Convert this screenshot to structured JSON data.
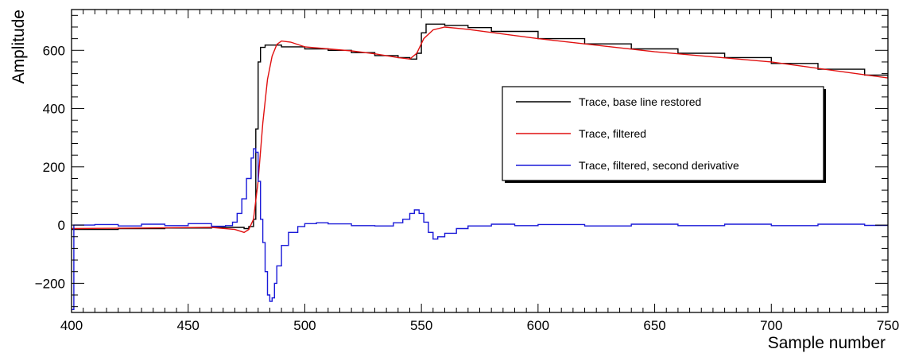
{
  "chart_data": {
    "type": "line",
    "title": "",
    "xlabel": "Sample number",
    "ylabel": "Amplitude",
    "xlim": [
      400,
      750
    ],
    "ylim": [
      -300,
      740
    ],
    "x_ticks": [
      400,
      450,
      500,
      550,
      600,
      650,
      700,
      750
    ],
    "y_ticks": [
      -200,
      0,
      200,
      400,
      600
    ],
    "y_tick_labels": [
      "−200",
      "0",
      "200",
      "400",
      "600"
    ],
    "grid": false,
    "legend_position": "center-right",
    "series": [
      {
        "name": "Trace, base line restored",
        "color": "#000000",
        "style": "step",
        "points": [
          [
            400,
            -15
          ],
          [
            420,
            -12
          ],
          [
            440,
            -10
          ],
          [
            460,
            -8
          ],
          [
            470,
            -8
          ],
          [
            474,
            -12
          ],
          [
            476,
            -5
          ],
          [
            478,
            20
          ],
          [
            479,
            330
          ],
          [
            480,
            560
          ],
          [
            481,
            610
          ],
          [
            483,
            618
          ],
          [
            490,
            612
          ],
          [
            500,
            605
          ],
          [
            510,
            600
          ],
          [
            520,
            592
          ],
          [
            530,
            582
          ],
          [
            540,
            575
          ],
          [
            545,
            570
          ],
          [
            548,
            590
          ],
          [
            550,
            660
          ],
          [
            552,
            690
          ],
          [
            560,
            685
          ],
          [
            570,
            678
          ],
          [
            580,
            665
          ],
          [
            600,
            640
          ],
          [
            620,
            622
          ],
          [
            640,
            605
          ],
          [
            660,
            590
          ],
          [
            680,
            575
          ],
          [
            700,
            555
          ],
          [
            720,
            535
          ],
          [
            740,
            515
          ],
          [
            750,
            505
          ]
        ]
      },
      {
        "name": "Trace, filtered",
        "color": "#e01010",
        "style": "line",
        "points": [
          [
            400,
            -12
          ],
          [
            430,
            -10
          ],
          [
            460,
            -8
          ],
          [
            470,
            -15
          ],
          [
            474,
            -25
          ],
          [
            476,
            -15
          ],
          [
            478,
            20
          ],
          [
            480,
            150
          ],
          [
            482,
            350
          ],
          [
            484,
            500
          ],
          [
            486,
            580
          ],
          [
            488,
            620
          ],
          [
            490,
            632
          ],
          [
            494,
            628
          ],
          [
            500,
            612
          ],
          [
            520,
            598
          ],
          [
            530,
            588
          ],
          [
            540,
            575
          ],
          [
            545,
            570
          ],
          [
            548,
            590
          ],
          [
            551,
            640
          ],
          [
            555,
            670
          ],
          [
            560,
            680
          ],
          [
            570,
            672
          ],
          [
            600,
            640
          ],
          [
            650,
            595
          ],
          [
            700,
            560
          ],
          [
            750,
            505
          ]
        ]
      },
      {
        "name": "Trace, filtered, second derivative",
        "color": "#1a1ad8",
        "style": "step",
        "points": [
          [
            400,
            -290
          ],
          [
            401,
            0
          ],
          [
            410,
            2
          ],
          [
            420,
            -3
          ],
          [
            430,
            3
          ],
          [
            440,
            -2
          ],
          [
            450,
            5
          ],
          [
            460,
            -4
          ],
          [
            466,
            -2
          ],
          [
            469,
            10
          ],
          [
            471,
            40
          ],
          [
            473,
            90
          ],
          [
            475,
            160
          ],
          [
            477,
            230
          ],
          [
            478,
            262
          ],
          [
            479,
            250
          ],
          [
            480,
            150
          ],
          [
            481,
            20
          ],
          [
            482,
            -60
          ],
          [
            483,
            -160
          ],
          [
            484,
            -240
          ],
          [
            485,
            -262
          ],
          [
            486,
            -250
          ],
          [
            487,
            -200
          ],
          [
            488,
            -140
          ],
          [
            490,
            -70
          ],
          [
            493,
            -25
          ],
          [
            497,
            -5
          ],
          [
            500,
            5
          ],
          [
            505,
            8
          ],
          [
            510,
            4
          ],
          [
            520,
            -2
          ],
          [
            530,
            -3
          ],
          [
            538,
            8
          ],
          [
            542,
            20
          ],
          [
            545,
            40
          ],
          [
            547,
            52
          ],
          [
            549,
            40
          ],
          [
            551,
            10
          ],
          [
            553,
            -25
          ],
          [
            555,
            -48
          ],
          [
            557,
            -40
          ],
          [
            560,
            -28
          ],
          [
            565,
            -12
          ],
          [
            570,
            -3
          ],
          [
            580,
            3
          ],
          [
            590,
            -2
          ],
          [
            600,
            2
          ],
          [
            620,
            -3
          ],
          [
            640,
            3
          ],
          [
            660,
            -2
          ],
          [
            680,
            3
          ],
          [
            700,
            -2
          ],
          [
            720,
            3
          ],
          [
            740,
            -1
          ],
          [
            750,
            2
          ]
        ]
      }
    ]
  }
}
